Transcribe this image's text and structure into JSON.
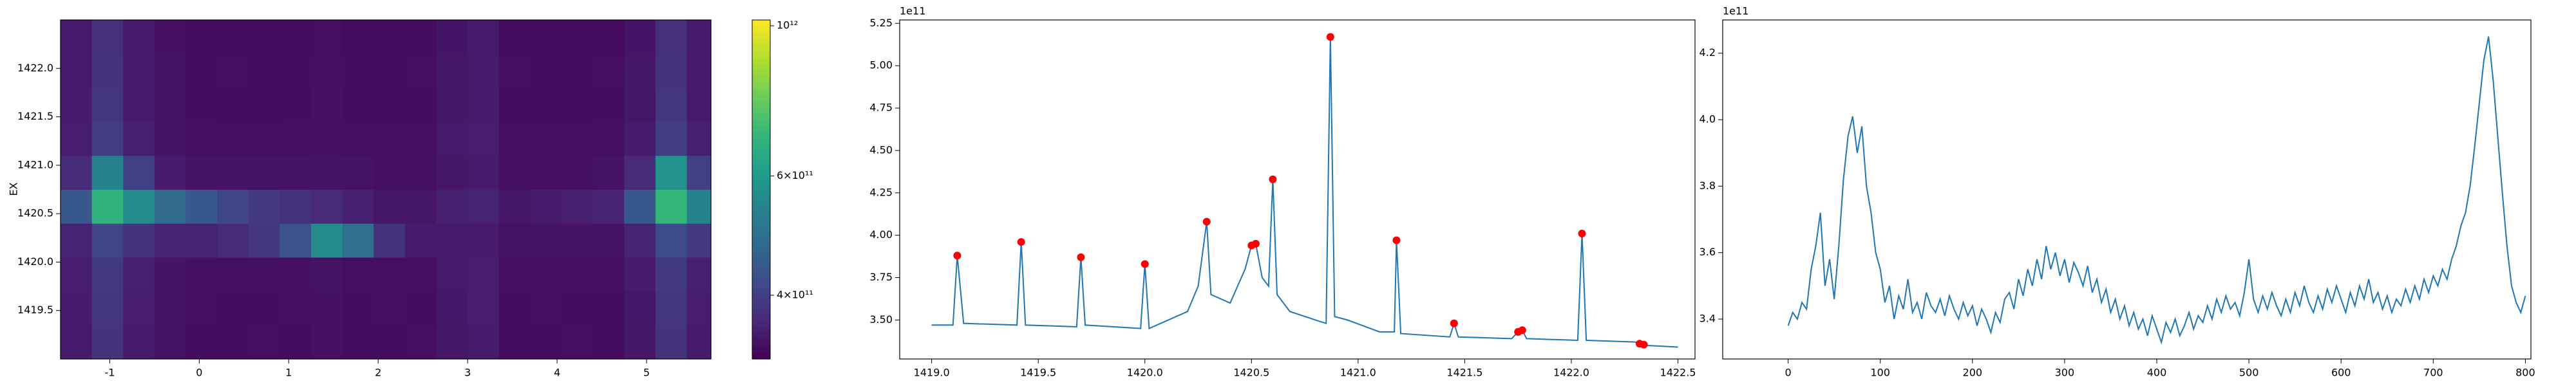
{
  "chart_data": [
    {
      "type": "heatmap",
      "ylabel": "EX",
      "xlim": [
        -1.55,
        5.72
      ],
      "ylim": [
        1419.0,
        1422.5
      ],
      "xticks": [
        -1,
        0,
        1,
        2,
        3,
        4,
        5
      ],
      "yticks": [
        1419.5,
        {
          "value": 1420,
          "label": "1420.0"
        },
        1420.5,
        {
          "value": 1421,
          "label": "1421.0"
        },
        1421.5,
        {
          "value": 1422,
          "label": "1422.0"
        }
      ],
      "xbins": [
        -1.55,
        -1.2,
        -0.85,
        -0.5,
        -0.15,
        0.2,
        0.55,
        0.9,
        1.25,
        1.6,
        1.95,
        2.3,
        2.65,
        3.0,
        3.35,
        3.7,
        4.05,
        4.4,
        4.75,
        5.1,
        5.45,
        5.72
      ],
      "ybins": [
        1419.0,
        1419.35,
        1419.7,
        1420.05,
        1420.4,
        1420.75,
        1421.1,
        1421.45,
        1421.8,
        1422.15,
        1422.5
      ],
      "z": [
        [
          350000000000.0,
          380000000000.0,
          350000000000.0,
          340000000000.0,
          335000000000.0,
          335000000000.0,
          336000000000.0,
          335000000000.0,
          338000000000.0,
          335000000000.0,
          335000000000.0,
          336000000000.0,
          345000000000.0,
          350000000000.0,
          335000000000.0,
          335000000000.0,
          336000000000.0,
          335000000000.0,
          345000000000.0,
          380000000000.0,
          350000000000.0
        ],
        [
          350000000000.0,
          385000000000.0,
          352000000000.0,
          340000000000.0,
          336000000000.0,
          335000000000.0,
          335000000000.0,
          336000000000.0,
          338000000000.0,
          335000000000.0,
          336000000000.0,
          335000000000.0,
          346000000000.0,
          352000000000.0,
          335000000000.0,
          336000000000.0,
          335000000000.0,
          335000000000.0,
          346000000000.0,
          385000000000.0,
          352000000000.0
        ],
        [
          352000000000.0,
          390000000000.0,
          355000000000.0,
          342000000000.0,
          338000000000.0,
          337000000000.0,
          338000000000.0,
          338000000000.0,
          340000000000.0,
          337000000000.0,
          336000000000.0,
          336000000000.0,
          347000000000.0,
          352000000000.0,
          336000000000.0,
          336000000000.0,
          336000000000.0,
          337000000000.0,
          350000000000.0,
          390000000000.0,
          355000000000.0
        ],
        [
          360000000000.0,
          410000000000.0,
          380000000000.0,
          360000000000.0,
          360000000000.0,
          370000000000.0,
          385000000000.0,
          430000000000.0,
          560000000000.0,
          490000000000.0,
          380000000000.0,
          350000000000.0,
          350000000000.0,
          350000000000.0,
          340000000000.0,
          340000000000.0,
          340000000000.0,
          340000000000.0,
          360000000000.0,
          420000000000.0,
          390000000000.0
        ],
        [
          440000000000.0,
          680000000000.0,
          560000000000.0,
          480000000000.0,
          440000000000.0,
          410000000000.0,
          390000000000.0,
          380000000000.0,
          370000000000.0,
          355000000000.0,
          345000000000.0,
          345000000000.0,
          355000000000.0,
          360000000000.0,
          345000000000.0,
          350000000000.0,
          355000000000.0,
          360000000000.0,
          440000000000.0,
          690000000000.0,
          540000000000.0
        ],
        [
          370000000000.0,
          540000000000.0,
          400000000000.0,
          350000000000.0,
          340000000000.0,
          340000000000.0,
          340000000000.0,
          340000000000.0,
          340000000000.0,
          340000000000.0,
          338000000000.0,
          338000000000.0,
          345000000000.0,
          350000000000.0,
          338000000000.0,
          338000000000.0,
          338000000000.0,
          340000000000.0,
          370000000000.0,
          580000000000.0,
          400000000000.0
        ],
        [
          352000000000.0,
          395000000000.0,
          355000000000.0,
          342000000000.0,
          337000000000.0,
          336000000000.0,
          336000000000.0,
          337000000000.0,
          338000000000.0,
          336000000000.0,
          336000000000.0,
          336000000000.0,
          347000000000.0,
          352000000000.0,
          336000000000.0,
          336000000000.0,
          336000000000.0,
          337000000000.0,
          350000000000.0,
          395000000000.0,
          355000000000.0
        ],
        [
          350000000000.0,
          385000000000.0,
          350000000000.0,
          340000000000.0,
          335000000000.0,
          335000000000.0,
          335000000000.0,
          335000000000.0,
          338000000000.0,
          335000000000.0,
          335000000000.0,
          335000000000.0,
          345000000000.0,
          350000000000.0,
          335000000000.0,
          335000000000.0,
          335000000000.0,
          335000000000.0,
          345000000000.0,
          385000000000.0,
          350000000000.0
        ],
        [
          350000000000.0,
          380000000000.0,
          350000000000.0,
          340000000000.0,
          335000000000.0,
          336000000000.0,
          335000000000.0,
          335000000000.0,
          337000000000.0,
          335000000000.0,
          335000000000.0,
          336000000000.0,
          345000000000.0,
          350000000000.0,
          336000000000.0,
          335000000000.0,
          335000000000.0,
          336000000000.0,
          345000000000.0,
          380000000000.0,
          350000000000.0
        ],
        [
          348000000000.0,
          375000000000.0,
          348000000000.0,
          338000000000.0,
          334000000000.0,
          334000000000.0,
          334000000000.0,
          334000000000.0,
          336000000000.0,
          334000000000.0,
          334000000000.0,
          334000000000.0,
          343000000000.0,
          348000000000.0,
          334000000000.0,
          334000000000.0,
          334000000000.0,
          334000000000.0,
          343000000000.0,
          375000000000.0,
          348000000000.0
        ]
      ],
      "colormap": "viridis",
      "color_scale": "log",
      "clim": [
        322000000000.0,
        1020000000000.0
      ],
      "cticks": [
        {
          "value": 400000000000.0,
          "label": "4×10¹¹"
        },
        {
          "value": 600000000000.0,
          "label": "6×10¹¹"
        },
        {
          "value": 1000000000000.0,
          "label": "10¹²"
        }
      ]
    },
    {
      "type": "line",
      "y_offset_label": "1e11",
      "xlim": [
        1418.85,
        1422.58
      ],
      "ylim": [
        3.27,
        5.27
      ],
      "xticks": [
        {
          "value": 1419,
          "label": "1419.0"
        },
        1419.5,
        {
          "value": 1420,
          "label": "1420.0"
        },
        1420.5,
        {
          "value": 1421,
          "label": "1421.0"
        },
        1421.5,
        {
          "value": 1422,
          "label": "1422.0"
        },
        1422.5
      ],
      "yticks": [
        {
          "value": 3.5,
          "label": "3.50"
        },
        3.75,
        {
          "value": 4,
          "label": "4.00"
        },
        4.25,
        {
          "value": 4.5,
          "label": "4.50"
        },
        4.75,
        {
          "value": 5,
          "label": "5.00"
        },
        5.25
      ],
      "series": [
        {
          "mode": "line",
          "color": "#1f77b4",
          "x": [
            1419.0,
            1419.1,
            1419.12,
            1419.15,
            1419.4,
            1419.42,
            1419.44,
            1419.68,
            1419.7,
            1419.72,
            1419.98,
            1420.0,
            1420.02,
            1420.2,
            1420.25,
            1420.29,
            1420.31,
            1420.4,
            1420.47,
            1420.5,
            1420.52,
            1420.55,
            1420.58,
            1420.6,
            1420.62,
            1420.68,
            1420.8,
            1420.85,
            1420.87,
            1420.89,
            1420.95,
            1421.1,
            1421.17,
            1421.18,
            1421.2,
            1421.43,
            1421.45,
            1421.47,
            1421.72,
            1421.75,
            1421.77,
            1421.79,
            1422.03,
            1422.05,
            1422.07,
            1422.3,
            1422.32,
            1422.35,
            1422.5
          ],
          "values": [
            3.47,
            3.47,
            3.88,
            3.48,
            3.47,
            3.96,
            3.47,
            3.46,
            3.87,
            3.47,
            3.45,
            3.83,
            3.45,
            3.55,
            3.7,
            4.08,
            3.65,
            3.6,
            3.8,
            3.94,
            3.95,
            3.75,
            3.7,
            4.33,
            3.65,
            3.55,
            3.5,
            3.48,
            5.17,
            3.52,
            3.5,
            3.43,
            3.43,
            3.97,
            3.42,
            3.4,
            3.48,
            3.4,
            3.39,
            3.43,
            3.44,
            3.39,
            3.38,
            4.01,
            3.38,
            3.37,
            3.36,
            3.35,
            3.34
          ]
        },
        {
          "mode": "markers",
          "color": "#ff0000",
          "x": [
            1419.12,
            1419.42,
            1419.7,
            1420.0,
            1420.29,
            1420.5,
            1420.52,
            1420.6,
            1420.87,
            1421.18,
            1421.45,
            1421.75,
            1421.77,
            1422.05,
            1422.32,
            1422.34
          ],
          "values": [
            3.88,
            3.96,
            3.87,
            3.83,
            4.08,
            3.94,
            3.95,
            4.33,
            5.17,
            3.97,
            3.48,
            3.43,
            3.44,
            4.01,
            3.36,
            3.355
          ]
        }
      ]
    },
    {
      "type": "line",
      "y_offset_label": "1e11",
      "xlim": [
        -71,
        806
      ],
      "ylim": [
        3.28,
        4.3
      ],
      "xticks": [
        0,
        100,
        200,
        300,
        400,
        500,
        600,
        700,
        800
      ],
      "yticks": [
        3.4,
        3.6,
        3.8,
        {
          "value": 4,
          "label": "4.0"
        },
        4.2
      ],
      "series": [
        {
          "mode": "line",
          "color": "#1f77b4",
          "x": [
            0,
            5,
            10,
            15,
            20,
            25,
            30,
            35,
            40,
            45,
            50,
            55,
            60,
            65,
            70,
            75,
            80,
            85,
            90,
            95,
            100,
            105,
            110,
            115,
            120,
            125,
            130,
            135,
            140,
            145,
            150,
            155,
            160,
            165,
            170,
            175,
            180,
            185,
            190,
            195,
            200,
            205,
            210,
            215,
            220,
            225,
            230,
            235,
            240,
            245,
            250,
            255,
            260,
            265,
            270,
            275,
            280,
            285,
            290,
            295,
            300,
            305,
            310,
            315,
            320,
            325,
            330,
            335,
            340,
            345,
            350,
            355,
            360,
            365,
            370,
            375,
            380,
            385,
            390,
            395,
            400,
            405,
            410,
            415,
            420,
            425,
            430,
            435,
            440,
            445,
            450,
            455,
            460,
            465,
            470,
            475,
            480,
            485,
            490,
            495,
            500,
            505,
            510,
            515,
            520,
            525,
            530,
            535,
            540,
            545,
            550,
            555,
            560,
            565,
            570,
            575,
            580,
            585,
            590,
            595,
            600,
            605,
            610,
            615,
            620,
            625,
            630,
            635,
            640,
            645,
            650,
            655,
            660,
            665,
            670,
            675,
            680,
            685,
            690,
            695,
            700,
            705,
            710,
            715,
            720,
            725,
            730,
            735,
            740,
            745,
            750,
            755,
            760,
            765,
            770,
            775,
            780,
            785,
            790,
            795,
            800
          ],
          "values": [
            3.38,
            3.42,
            3.4,
            3.45,
            3.43,
            3.55,
            3.62,
            3.72,
            3.5,
            3.58,
            3.46,
            3.62,
            3.82,
            3.95,
            4.01,
            3.9,
            3.98,
            3.8,
            3.72,
            3.6,
            3.55,
            3.45,
            3.5,
            3.4,
            3.47,
            3.43,
            3.52,
            3.42,
            3.45,
            3.4,
            3.48,
            3.44,
            3.42,
            3.46,
            3.41,
            3.47,
            3.43,
            3.4,
            3.45,
            3.41,
            3.44,
            3.38,
            3.43,
            3.4,
            3.36,
            3.42,
            3.39,
            3.46,
            3.48,
            3.43,
            3.52,
            3.47,
            3.55,
            3.5,
            3.58,
            3.52,
            3.62,
            3.55,
            3.6,
            3.53,
            3.58,
            3.51,
            3.57,
            3.54,
            3.5,
            3.56,
            3.48,
            3.52,
            3.45,
            3.49,
            3.42,
            3.46,
            3.4,
            3.44,
            3.38,
            3.42,
            3.37,
            3.4,
            3.35,
            3.41,
            3.37,
            3.33,
            3.39,
            3.36,
            3.4,
            3.35,
            3.38,
            3.42,
            3.37,
            3.41,
            3.39,
            3.44,
            3.4,
            3.46,
            3.42,
            3.47,
            3.43,
            3.45,
            3.41,
            3.48,
            3.58,
            3.46,
            3.42,
            3.47,
            3.43,
            3.48,
            3.44,
            3.41,
            3.46,
            3.42,
            3.48,
            3.44,
            3.5,
            3.45,
            3.42,
            3.47,
            3.43,
            3.49,
            3.45,
            3.5,
            3.46,
            3.42,
            3.48,
            3.44,
            3.5,
            3.46,
            3.52,
            3.45,
            3.48,
            3.43,
            3.47,
            3.42,
            3.46,
            3.44,
            3.49,
            3.45,
            3.5,
            3.46,
            3.52,
            3.48,
            3.53,
            3.5,
            3.55,
            3.52,
            3.58,
            3.62,
            3.68,
            3.72,
            3.8,
            3.92,
            4.05,
            4.18,
            4.25,
            4.12,
            3.95,
            3.78,
            3.62,
            3.5,
            3.45,
            3.42,
            3.47
          ]
        }
      ]
    }
  ]
}
